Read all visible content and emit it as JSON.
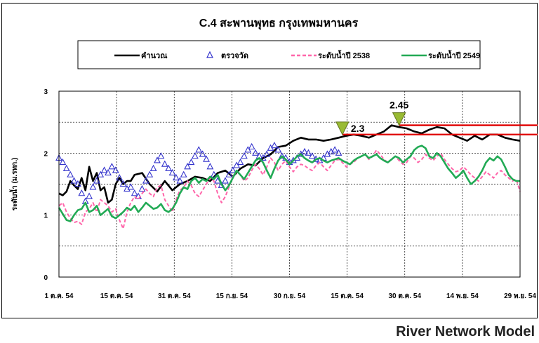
{
  "footer": {
    "text": "River Network Model"
  },
  "chart_data": {
    "type": "line",
    "title": "C.4 สะพานพุทธ กรุงเทพมหานคร",
    "ylabel": "ระดับน้ำ (ม.รทก.)",
    "xlabel": "",
    "ylim": [
      0,
      3
    ],
    "yticks": [
      0,
      1,
      2,
      3
    ],
    "x_categories": [
      "1 ต.ค. 54",
      "15 ต.ค. 54",
      "31 ต.ค. 54",
      "15 ก.ย. 54",
      "30 ก.ย. 54",
      "15 ต.ค. 54",
      "30 ต.ค. 54",
      "14 พ.ย. 54",
      "29 พ.ย. 54"
    ],
    "x_range": [
      0,
      61
    ],
    "grid": true,
    "legend_position": "top",
    "series": [
      {
        "name": "คำนวณ",
        "style": "line",
        "color": "#000000",
        "x": [
          0,
          0.5,
          1,
          1.5,
          2,
          2.5,
          3,
          3.5,
          4,
          4.5,
          5,
          5.5,
          6,
          6.5,
          7,
          7.5,
          8,
          8.5,
          9,
          9.5,
          10,
          11,
          12,
          13,
          14,
          15,
          16,
          17,
          18,
          19,
          20,
          21,
          22,
          23,
          24,
          25,
          26,
          27,
          28,
          29,
          30,
          31,
          32,
          33,
          34,
          35,
          36,
          37,
          38,
          39,
          40,
          41,
          42,
          43,
          44,
          45,
          46,
          47,
          48,
          49,
          50,
          51,
          52,
          53,
          54,
          55,
          56,
          57,
          58,
          59,
          60,
          61
        ],
        "y": [
          1.35,
          1.32,
          1.38,
          1.55,
          1.48,
          1.42,
          1.6,
          1.4,
          1.78,
          1.55,
          1.68,
          1.4,
          1.45,
          1.2,
          1.25,
          1.5,
          1.6,
          1.5,
          1.55,
          1.55,
          1.65,
          1.68,
          1.5,
          1.38,
          1.55,
          1.4,
          1.5,
          1.55,
          1.62,
          1.6,
          1.55,
          1.68,
          1.72,
          1.62,
          1.75,
          1.82,
          1.8,
          1.92,
          1.98,
          2.1,
          2.12,
          2.2,
          2.25,
          2.22,
          2.22,
          2.2,
          2.22,
          2.25,
          2.28,
          2.3,
          2.28,
          2.25,
          2.3,
          2.35,
          2.45,
          2.42,
          2.4,
          2.35,
          2.32,
          2.38,
          2.42,
          2.4,
          2.3,
          2.25,
          2.2,
          2.28,
          2.22,
          2.3,
          2.3,
          2.25,
          2.22,
          2.2
        ]
      },
      {
        "name": "ตรวจวัด",
        "style": "triangles",
        "color": "#3333cc",
        "x": [
          0,
          0.5,
          1,
          1.5,
          2,
          2.5,
          3,
          3.5,
          4,
          4.5,
          5,
          5.5,
          6,
          6.5,
          7,
          7.5,
          8,
          8.5,
          9,
          9.5,
          10,
          10.5,
          11,
          11.5,
          12,
          12.5,
          13,
          13.5,
          14,
          14.5,
          15,
          15.5,
          16,
          16.5,
          17,
          17.5,
          18,
          18.5,
          19,
          19.5,
          20,
          20.5,
          21,
          21.5,
          22,
          22.5,
          23,
          23.5,
          24,
          24.5,
          25,
          25.5,
          26,
          26.5,
          27,
          27.5,
          28,
          28.5,
          29,
          29.5,
          30,
          30.5,
          31,
          31.5,
          32,
          32.5,
          33,
          33.5,
          34,
          34.5,
          35,
          35.5,
          36,
          36.5,
          37
        ],
        "y": [
          1.92,
          1.85,
          1.75,
          1.65,
          1.55,
          1.5,
          1.35,
          1.22,
          1.3,
          1.45,
          1.55,
          1.65,
          1.72,
          1.68,
          1.78,
          1.72,
          1.6,
          1.5,
          1.42,
          1.45,
          1.35,
          1.3,
          1.42,
          1.55,
          1.65,
          1.75,
          1.88,
          1.95,
          1.82,
          1.75,
          1.68,
          1.6,
          1.55,
          1.65,
          1.78,
          1.85,
          1.95,
          2.05,
          1.98,
          1.9,
          1.78,
          1.65,
          1.55,
          1.48,
          1.55,
          1.65,
          1.72,
          1.8,
          1.85,
          1.95,
          2.05,
          2.1,
          2.0,
          1.95,
          1.92,
          1.98,
          2.08,
          2.12,
          2.05,
          1.95,
          1.92,
          1.85,
          1.88,
          1.92,
          1.98,
          2.02,
          2.0,
          1.95,
          1.9,
          1.88,
          1.92,
          1.98,
          2.02,
          2.05,
          2.0
        ]
      },
      {
        "name": "ระดับน้ำปี 2538",
        "style": "dashed",
        "color": "#ff66aa",
        "x": [
          0,
          0.5,
          1,
          1.5,
          2,
          2.5,
          3,
          3.5,
          4,
          4.5,
          5,
          5.5,
          6,
          6.5,
          7,
          7.5,
          8,
          8.5,
          9,
          9.5,
          10,
          10.5,
          11,
          11.5,
          12,
          12.5,
          13,
          13.5,
          14,
          14.5,
          15,
          15.5,
          16,
          16.5,
          17,
          17.5,
          18,
          18.5,
          19,
          19.5,
          20,
          20.5,
          21,
          21.5,
          22,
          22.5,
          23,
          23.5,
          24,
          24.5,
          25,
          25.5,
          26,
          26.5,
          27,
          27.5,
          28,
          28.5,
          29,
          29.5,
          30,
          30.5,
          31,
          31.5,
          32,
          32.5,
          33,
          33.5,
          34,
          34.5,
          35,
          35.5,
          36,
          36.5,
          37,
          37.5,
          38,
          38.5,
          39,
          39.5,
          40,
          40.5,
          41,
          41.5,
          42,
          42.5,
          43,
          43.5,
          44,
          44.5,
          45,
          45.5,
          46,
          46.5,
          47,
          47.5,
          48,
          48.5,
          49,
          49.5,
          50,
          50.5,
          51,
          51.5,
          52,
          52.5,
          53,
          53.5,
          54,
          54.5,
          55,
          55.5,
          56,
          56.5,
          57,
          57.5,
          58,
          58.5,
          59,
          59.5,
          60,
          60.5,
          61
        ],
        "y": [
          1.15,
          1.2,
          1.05,
          0.95,
          0.88,
          0.9,
          0.85,
          1.05,
          1.1,
          1.2,
          1.05,
          1.25,
          1.2,
          1.15,
          1.05,
          1.1,
          0.92,
          0.78,
          1.05,
          1.2,
          1.3,
          1.25,
          1.35,
          1.42,
          1.35,
          1.3,
          1.45,
          1.48,
          1.25,
          1.15,
          1.05,
          1.25,
          1.4,
          1.45,
          1.55,
          1.48,
          1.35,
          1.3,
          1.4,
          1.5,
          1.6,
          1.55,
          1.35,
          1.2,
          1.3,
          1.45,
          1.62,
          1.7,
          1.65,
          1.55,
          1.6,
          1.72,
          1.82,
          1.75,
          1.65,
          1.78,
          1.92,
          1.85,
          1.72,
          1.82,
          1.88,
          1.78,
          1.7,
          1.78,
          1.82,
          1.8,
          1.75,
          1.72,
          1.8,
          1.85,
          1.78,
          1.72,
          1.8,
          1.88,
          1.9,
          1.85,
          1.78,
          1.82,
          1.85,
          1.92,
          1.95,
          1.98,
          1.9,
          1.95,
          2.05,
          1.98,
          1.9,
          1.85,
          1.9,
          1.95,
          1.88,
          1.82,
          1.85,
          1.95,
          1.92,
          1.85,
          1.9,
          1.98,
          1.92,
          1.88,
          1.95,
          2.0,
          1.9,
          1.82,
          1.75,
          1.7,
          1.72,
          1.78,
          1.72,
          1.65,
          1.6,
          1.55,
          1.62,
          1.7,
          1.65,
          1.6,
          1.68,
          1.72,
          1.65,
          1.6,
          1.55,
          1.58,
          1.38
        ]
      },
      {
        "name": "ระดับน้ำปี 2549",
        "style": "line",
        "color": "#22aa55",
        "x": [
          0,
          0.5,
          1,
          1.5,
          2,
          2.5,
          3,
          3.5,
          4,
          4.5,
          5,
          5.5,
          6,
          6.5,
          7,
          7.5,
          8,
          8.5,
          9,
          9.5,
          10,
          10.5,
          11,
          11.5,
          12,
          12.5,
          13,
          13.5,
          14,
          14.5,
          15,
          15.5,
          16,
          16.5,
          17,
          17.5,
          18,
          18.5,
          19,
          19.5,
          20,
          20.5,
          21,
          21.5,
          22,
          22.5,
          23,
          23.5,
          24,
          24.5,
          25,
          25.5,
          26,
          26.5,
          27,
          27.5,
          28,
          28.5,
          29,
          29.5,
          30,
          30.5,
          31,
          31.5,
          32,
          32.5,
          33,
          33.5,
          34,
          34.5,
          35,
          35.5,
          36,
          36.5,
          37,
          37.5,
          38,
          38.5,
          39,
          39.5,
          40,
          40.5,
          41,
          41.5,
          42,
          42.5,
          43,
          43.5,
          44,
          44.5,
          45,
          45.5,
          46,
          46.5,
          47,
          47.5,
          48,
          48.5,
          49,
          49.5,
          50,
          50.5,
          51,
          51.5,
          52,
          52.5,
          53,
          53.5,
          54,
          54.5,
          55,
          55.5,
          56,
          56.5,
          57,
          57.5,
          58,
          58.5,
          59,
          59.5,
          60,
          60.5,
          61
        ],
        "y": [
          1.12,
          1.02,
          0.92,
          0.9,
          1.0,
          1.08,
          1.1,
          1.2,
          1.05,
          1.08,
          1.15,
          1.0,
          1.05,
          1.1,
          0.98,
          0.95,
          1.0,
          1.05,
          1.12,
          1.08,
          1.15,
          1.05,
          1.12,
          1.2,
          1.15,
          1.1,
          1.12,
          1.18,
          1.08,
          1.05,
          1.1,
          1.2,
          1.35,
          1.45,
          1.42,
          1.55,
          1.6,
          1.52,
          1.58,
          1.55,
          1.62,
          1.58,
          1.65,
          1.5,
          1.4,
          1.48,
          1.6,
          1.72,
          1.65,
          1.58,
          1.68,
          1.78,
          1.88,
          1.92,
          1.85,
          1.72,
          1.6,
          1.75,
          1.88,
          1.95,
          1.9,
          1.82,
          1.88,
          1.95,
          1.98,
          1.92,
          1.88,
          1.85,
          1.9,
          1.92,
          1.88,
          1.85,
          1.88,
          1.9,
          1.92,
          1.88,
          1.85,
          1.82,
          1.88,
          1.92,
          1.95,
          1.98,
          1.92,
          1.95,
          1.98,
          1.92,
          1.88,
          1.85,
          1.9,
          1.95,
          1.92,
          1.85,
          1.9,
          1.95,
          2.05,
          2.1,
          2.12,
          2.08,
          1.95,
          1.92,
          2.0,
          1.95,
          1.85,
          1.75,
          1.68,
          1.6,
          1.65,
          1.72,
          1.6,
          1.5,
          1.55,
          1.62,
          1.72,
          1.85,
          1.92,
          1.88,
          1.95,
          1.9,
          1.78,
          1.65,
          1.58,
          1.55,
          1.55
        ]
      }
    ],
    "annotations": [
      {
        "label": "2.3",
        "x": 37.5,
        "y": 2.3
      },
      {
        "label": "2.45",
        "x": 45,
        "y": 2.45
      }
    ]
  }
}
